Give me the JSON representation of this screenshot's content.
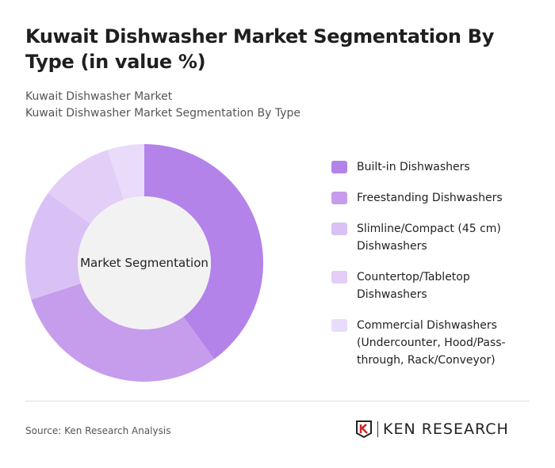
{
  "header": {
    "title": "Kuwait Dishwasher Market Segmentation By Type (in value %)",
    "subtitle1": "Kuwait Dishwasher Market",
    "subtitle2": "Kuwait Dishwasher Market Segmentation By Type"
  },
  "chart_data": {
    "type": "pie",
    "title": "Kuwait Dishwasher Market Segmentation By Type (in value %)",
    "center_label": "Market Segmentation",
    "categories": [
      "Built-in Dishwashers",
      "Freestanding Dishwashers",
      "Slimline/Compact (45 cm) Dishwashers",
      "Countertop/Tabletop Dishwashers",
      "Commercial Dishwashers (Undercounter, Hood/Pass-through, Rack/Conveyor)"
    ],
    "values": [
      40,
      30,
      15,
      10,
      5
    ],
    "colors": [
      "#b383ea",
      "#c69ced",
      "#d9c1f5",
      "#e2cef7",
      "#e9dbfa"
    ],
    "legend_position": "right"
  },
  "legend": [
    "Built-in Dishwashers",
    "Freestanding Dishwashers",
    "Slimline/Compact (45 cm) Dishwashers",
    "Countertop/Tabletop Dishwashers",
    "Commercial Dishwashers (Undercounter, Hood/Pass-through, Rack/Conveyor)"
  ],
  "footer": {
    "source": "Source: Ken Research Analysis",
    "logo": "KEN RESEARCH"
  }
}
